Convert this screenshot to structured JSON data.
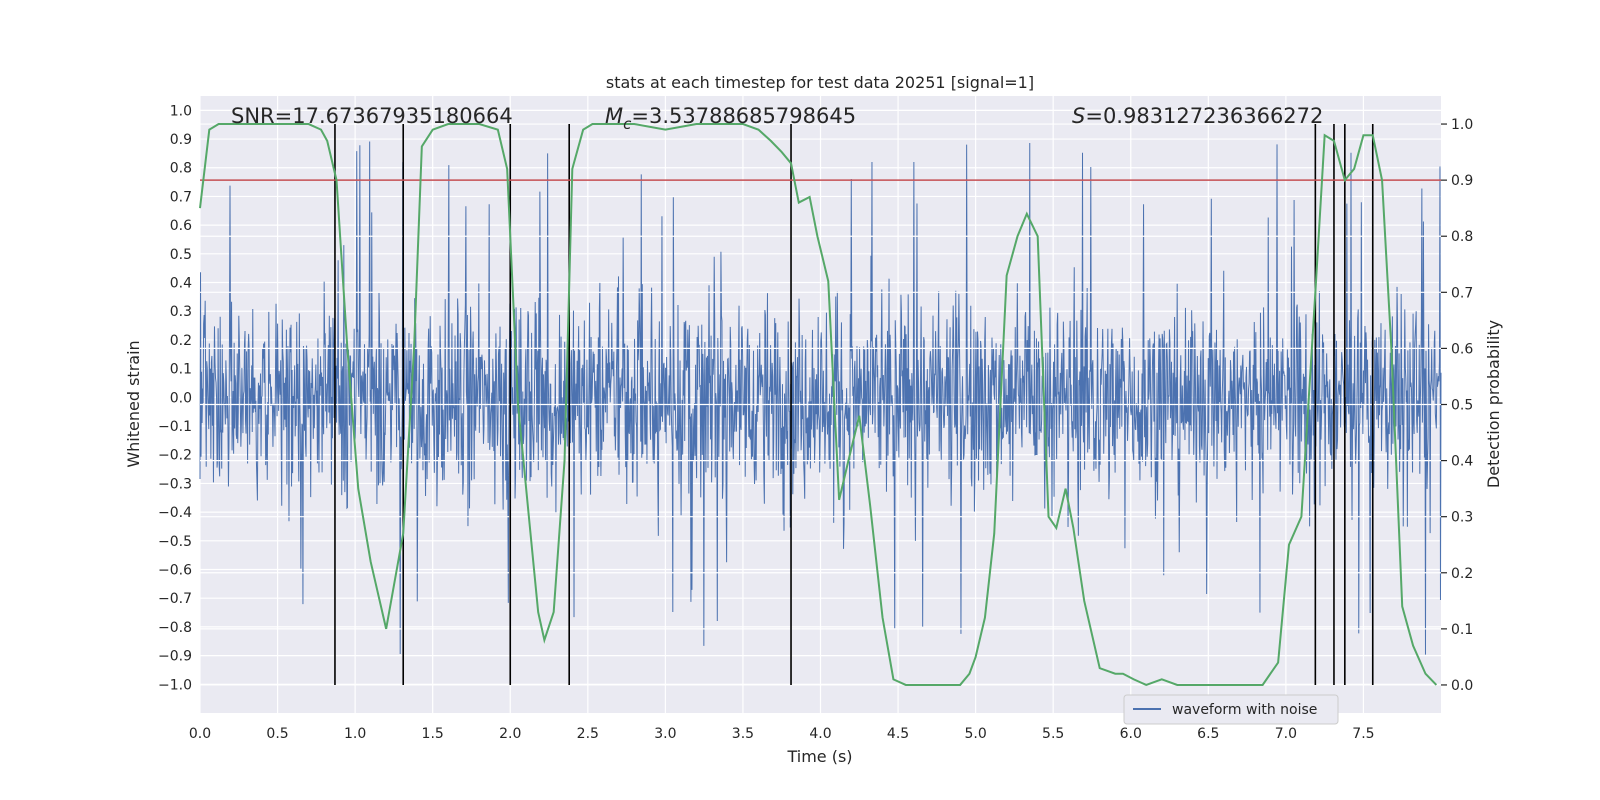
{
  "chart_data": {
    "type": "line",
    "title": "stats at each timestep for test data 20251 [signal=1]",
    "xlabel": "Time (s)",
    "ylabel": "Whitened strain",
    "y2label": "Detection probability",
    "xlim": [
      0.0,
      8.0
    ],
    "ylim": [
      -1.1,
      1.05
    ],
    "y2lim": [
      -0.05,
      1.05
    ],
    "xticks": [
      "0.0",
      "0.5",
      "1.0",
      "1.5",
      "2.0",
      "2.5",
      "3.0",
      "3.5",
      "4.0",
      "4.5",
      "5.0",
      "5.5",
      "6.0",
      "6.5",
      "7.0",
      "7.5"
    ],
    "yticks": [
      "1.0",
      "0.9",
      "0.8",
      "0.7",
      "0.6",
      "0.5",
      "0.4",
      "0.3",
      "0.2",
      "0.1",
      "0.0",
      "−0.1",
      "−0.2",
      "−0.3",
      "−0.4",
      "−0.5",
      "−0.6",
      "−0.7",
      "−0.8",
      "−0.9",
      "−1.0"
    ],
    "y2ticks": [
      "1.0",
      "0.9",
      "0.8",
      "0.7",
      "0.6",
      "0.5",
      "0.4",
      "0.3",
      "0.2",
      "0.1",
      "0.0"
    ],
    "annotations": {
      "snr": "SNR=17.67367935180664",
      "chirp_mass_symbol": "M",
      "chirp_mass_sub": "c",
      "chirp_mass_value": "=3.53788685798645",
      "s_symbol": "S",
      "s_value": "=0.983127236366272"
    },
    "legend": {
      "placement": "lower-right",
      "entries": [
        "waveform with noise"
      ]
    },
    "grid": true,
    "threshold": {
      "axis": "y2",
      "value": 0.9,
      "color": "#c44e52"
    },
    "vertical_lines": [
      0.87,
      1.31,
      2.0,
      2.38,
      3.81,
      7.19,
      7.31,
      7.38,
      7.56
    ],
    "series": [
      {
        "name": "waveform with noise",
        "axis": "y",
        "color": "#4c72b0",
        "description_note": "dense noisy strain signal; core amplitude about ±0.35 with spikes to about ±0.9",
        "x_range": [
          0.0,
          8.0
        ],
        "envelope_max": 0.92,
        "envelope_min": -0.99
      },
      {
        "name": "Detection probability",
        "axis": "y2",
        "color": "#55a868",
        "x": [
          0.0,
          0.06,
          0.12,
          0.25,
          0.5,
          0.7,
          0.78,
          0.82,
          0.88,
          0.95,
          1.02,
          1.1,
          1.2,
          1.31,
          1.38,
          1.43,
          1.5,
          1.6,
          1.8,
          1.92,
          1.98,
          2.05,
          2.12,
          2.18,
          2.22,
          2.28,
          2.35,
          2.4,
          2.47,
          2.53,
          2.6,
          2.8,
          3.0,
          3.2,
          3.4,
          3.5,
          3.6,
          3.68,
          3.75,
          3.81,
          3.86,
          3.93,
          3.98,
          4.05,
          4.12,
          4.18,
          4.25,
          4.32,
          4.4,
          4.47,
          4.55,
          4.7,
          4.8,
          4.9,
          4.96,
          5.0,
          5.06,
          5.12,
          5.2,
          5.27,
          5.33,
          5.4,
          5.47,
          5.52,
          5.58,
          5.63,
          5.7,
          5.8,
          5.9,
          5.95,
          6.02,
          6.1,
          6.2,
          6.3,
          6.45,
          6.6,
          6.75,
          6.85,
          6.95,
          7.02,
          7.1,
          7.19,
          7.25,
          7.31,
          7.38,
          7.44,
          7.5,
          7.56,
          7.62,
          7.68,
          7.75,
          7.82,
          7.9,
          7.97
        ],
        "values": [
          0.85,
          0.99,
          1.0,
          1.0,
          1.0,
          1.0,
          0.99,
          0.97,
          0.9,
          0.6,
          0.35,
          0.22,
          0.1,
          0.27,
          0.6,
          0.96,
          0.99,
          1.0,
          1.0,
          0.99,
          0.92,
          0.5,
          0.3,
          0.13,
          0.08,
          0.13,
          0.4,
          0.92,
          0.99,
          1.0,
          1.0,
          1.0,
          0.99,
          1.0,
          1.0,
          1.0,
          0.99,
          0.97,
          0.95,
          0.93,
          0.86,
          0.87,
          0.8,
          0.72,
          0.33,
          0.4,
          0.48,
          0.32,
          0.12,
          0.01,
          0.0,
          0.0,
          0.0,
          0.0,
          0.02,
          0.05,
          0.12,
          0.27,
          0.73,
          0.8,
          0.84,
          0.8,
          0.3,
          0.28,
          0.35,
          0.28,
          0.15,
          0.03,
          0.02,
          0.02,
          0.01,
          0.0,
          0.01,
          0.0,
          0.0,
          0.0,
          0.0,
          0.0,
          0.04,
          0.25,
          0.3,
          0.7,
          0.98,
          0.97,
          0.9,
          0.92,
          0.98,
          0.98,
          0.9,
          0.6,
          0.14,
          0.07,
          0.02,
          0.0
        ]
      }
    ]
  }
}
